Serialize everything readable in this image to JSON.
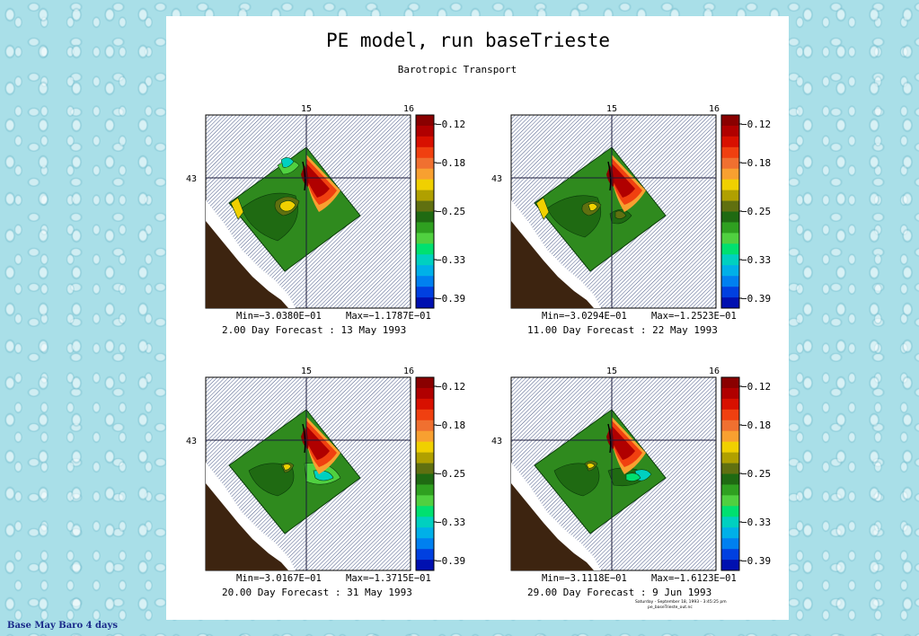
{
  "page": {
    "title": "PE model, run baseTrieste",
    "subtitle": "Barotropic Transport",
    "footer": "Base May Baro 4 days",
    "stamp_line1": "Saturday - September 18, 1993 - 3:45:25 pm",
    "stamp_line2": "pe_baseTrieste_out.nc"
  },
  "colors": {
    "land": "#3d2410",
    "sea_hatch": "#4a5a88",
    "grid": "#1a1a3a",
    "colorbar": [
      "#8a0000",
      "#b00000",
      "#d81000",
      "#f04010",
      "#f07030",
      "#f8a030",
      "#f0d000",
      "#b0a000",
      "#607010",
      "#1f6a12",
      "#2fa020",
      "#50d040",
      "#00e070",
      "#00d0c0",
      "#00b0e8",
      "#0080f0",
      "#0040e0",
      "#0010b0"
    ]
  },
  "axes": {
    "lon_labels": [
      "15",
      "16"
    ],
    "lat_label": "43"
  },
  "colorbar_labels": [
    "−0.12",
    "−0.18",
    "−0.25",
    "−0.33",
    "−0.39"
  ],
  "plots": [
    {
      "min_label": "Min=−3.0380E−01",
      "max_label": "Max=−1.1787E−01",
      "forecast": "2.00 Day Forecast : 13 May 1993",
      "cb_labels_clipped": false
    },
    {
      "min_label": "Min=−3.0294E−01",
      "max_label": "Max=−1.2523E−01",
      "forecast": "11.00 Day Forecast : 22 May 1993",
      "cb_labels_clipped": true
    },
    {
      "min_label": "Min=−3.0167E−01",
      "max_label": "Max=−1.3715E−01",
      "forecast": "20.00 Day Forecast : 31 May 1993",
      "cb_labels_clipped": false
    },
    {
      "min_label": "Min=−3.1118E−01",
      "max_label": "Max=−1.6123E−01",
      "forecast": "29.00 Day Forecast :  9 Jun 1993",
      "cb_labels_clipped": true
    }
  ]
}
